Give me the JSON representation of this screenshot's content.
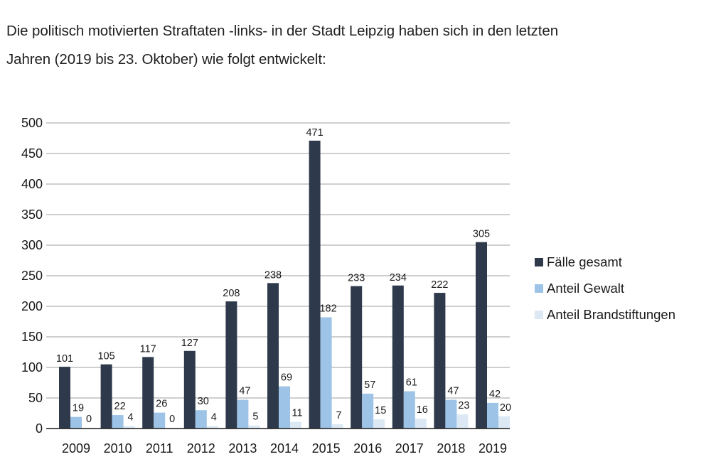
{
  "intro": {
    "line1": "Die politisch motivierten Straftaten -links- in der Stadt Leipzig haben sich in den letzten",
    "line2": "Jahren (2019 bis 23. Oktober) wie folgt entwickelt:"
  },
  "chart_data": {
    "type": "bar",
    "title": "",
    "xlabel": "",
    "ylabel": "",
    "ylim": [
      0,
      500
    ],
    "yticks": [
      0,
      50,
      100,
      150,
      200,
      250,
      300,
      350,
      400,
      450,
      500
    ],
    "grid": true,
    "legend_position": "right",
    "categories": [
      "2009",
      "2010",
      "2011",
      "2012",
      "2013",
      "2014",
      "2015",
      "2016",
      "2017",
      "2018",
      "2019"
    ],
    "series": [
      {
        "name": "Fälle gesamt",
        "color": "#2e3a4b",
        "values": [
          101,
          105,
          117,
          127,
          208,
          238,
          471,
          233,
          234,
          222,
          305
        ]
      },
      {
        "name": "Anteil Gewalt",
        "color": "#9dc3e6",
        "values": [
          19,
          22,
          26,
          30,
          47,
          69,
          182,
          57,
          61,
          47,
          42
        ]
      },
      {
        "name": "Anteil Brandstiftungen",
        "color": "#dce9f5",
        "values": [
          0,
          4,
          0,
          4,
          5,
          11,
          7,
          15,
          16,
          23,
          20
        ]
      }
    ]
  }
}
